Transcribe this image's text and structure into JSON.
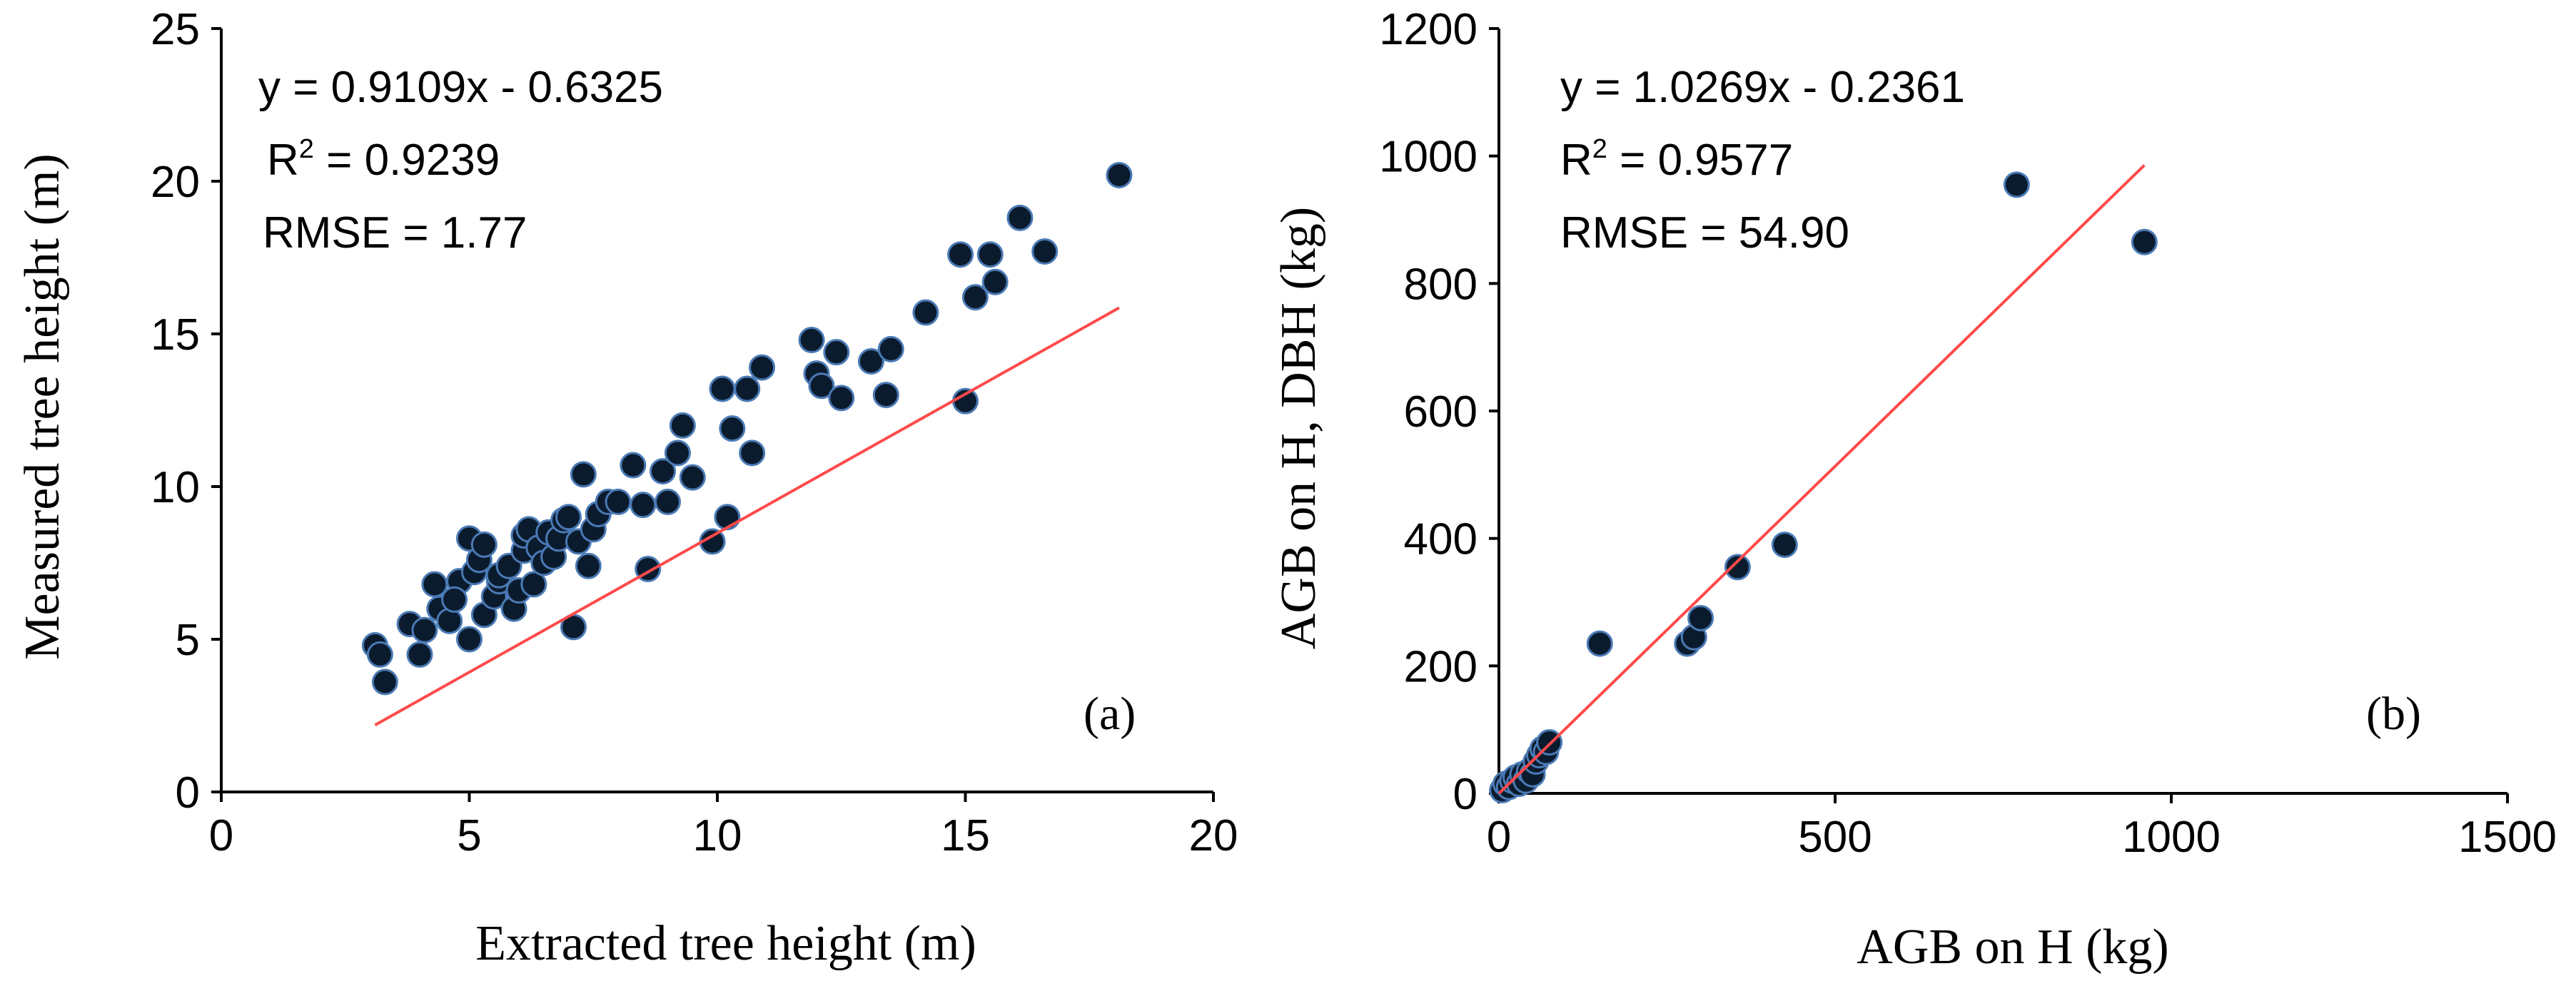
{
  "figure": {
    "point_color": "#0b1b2e",
    "point_edge_color": "#4a7ab5",
    "fit_color": "#ff4a4a"
  },
  "chart_data": [
    {
      "type": "scatter",
      "panel_label": "(a)",
      "xlabel": "Extracted tree height (m)",
      "ylabel": "Measured tree height (m)",
      "xlim": [
        0,
        20
      ],
      "ylim": [
        0,
        25
      ],
      "xticks": [
        0,
        5,
        10,
        15,
        20
      ],
      "yticks": [
        0,
        5,
        10,
        15,
        20,
        25
      ],
      "xtick_labels": [
        "0",
        "5",
        "10",
        "15",
        "20"
      ],
      "ytick_labels": [
        "0",
        "5",
        "10",
        "15",
        "20",
        "25"
      ],
      "fit": {
        "slope": 0.9109,
        "intercept": -0.6325,
        "x_range": [
          3.1,
          18.1
        ]
      },
      "annotations": {
        "equation": "y = 0.9109x - 0.6325",
        "r2_prefix": "R",
        "r2_sup": "2",
        "r2_value": " = 0.9239",
        "rmse": "RMSE = 1.77"
      },
      "x": [
        3.1,
        3.3,
        3.2,
        3.8,
        4.0,
        4.1,
        4.3,
        4.4,
        4.6,
        4.8,
        4.7,
        5.0,
        5.0,
        5.1,
        5.2,
        5.3,
        5.3,
        5.5,
        5.6,
        5.6,
        5.8,
        5.9,
        6.0,
        6.1,
        6.1,
        6.2,
        6.3,
        6.4,
        6.5,
        6.6,
        6.7,
        6.8,
        6.9,
        7.0,
        7.1,
        7.2,
        7.3,
        7.4,
        7.5,
        7.6,
        7.8,
        8.0,
        8.3,
        8.5,
        8.6,
        8.9,
        9.0,
        9.2,
        9.3,
        9.5,
        9.9,
        10.1,
        10.2,
        10.3,
        10.6,
        10.7,
        10.9,
        11.9,
        12.0,
        12.1,
        12.4,
        12.5,
        13.1,
        13.4,
        13.5,
        14.2,
        14.9,
        15.0,
        15.2,
        15.5,
        15.6,
        16.1,
        16.6,
        18.1
      ],
      "y": [
        4.8,
        3.6,
        4.5,
        5.5,
        4.5,
        5.3,
        6.8,
        6.0,
        5.6,
        6.9,
        6.3,
        5.0,
        8.3,
        7.2,
        7.6,
        8.1,
        5.8,
        6.4,
        6.9,
        7.1,
        7.4,
        6.0,
        6.6,
        7.9,
        8.4,
        8.6,
        6.8,
        8.0,
        7.5,
        8.5,
        7.7,
        8.3,
        8.9,
        9.0,
        5.4,
        8.2,
        10.4,
        7.4,
        8.6,
        9.1,
        9.5,
        9.5,
        10.7,
        9.4,
        7.3,
        10.5,
        9.5,
        11.1,
        12.0,
        10.3,
        8.2,
        13.2,
        9.0,
        11.9,
        13.2,
        11.1,
        13.9,
        14.8,
        13.7,
        13.3,
        14.4,
        12.9,
        14.1,
        13.0,
        14.5,
        15.7,
        17.6,
        12.8,
        16.2,
        17.6,
        16.7,
        18.8,
        17.7,
        20.2
      ]
    },
    {
      "type": "scatter",
      "panel_label": "(b)",
      "xlabel": "AGB on H (kg)",
      "ylabel": "AGB on H, DBH (kg)",
      "xlim": [
        0,
        1500
      ],
      "ylim": [
        0,
        1200
      ],
      "xticks": [
        0,
        500,
        1000,
        1500
      ],
      "yticks": [
        0,
        200,
        400,
        600,
        800,
        1000,
        1200
      ],
      "xtick_labels": [
        "0",
        "500",
        "1000",
        "1500"
      ],
      "ytick_labels": [
        "0",
        "200",
        "400",
        "600",
        "800",
        "1000",
        "1200"
      ],
      "fit": {
        "slope": 1.0269,
        "intercept": -0.2361,
        "x_range": [
          0,
          960
        ]
      },
      "annotations": {
        "equation": "y = 1.0269x - 0.2361",
        "r2_prefix": "R",
        "r2_sup": "2",
        "r2_value": " = 0.9577",
        "rmse": "RMSE = 54.90"
      },
      "x": [
        5,
        10,
        15,
        20,
        25,
        30,
        35,
        40,
        45,
        50,
        55,
        60,
        65,
        70,
        75,
        150,
        280,
        290,
        300,
        355,
        425,
        770,
        960
      ],
      "y": [
        5,
        15,
        10,
        20,
        25,
        15,
        30,
        20,
        35,
        30,
        50,
        60,
        70,
        65,
        80,
        235,
        235,
        245,
        275,
        355,
        390,
        955,
        865
      ]
    }
  ]
}
